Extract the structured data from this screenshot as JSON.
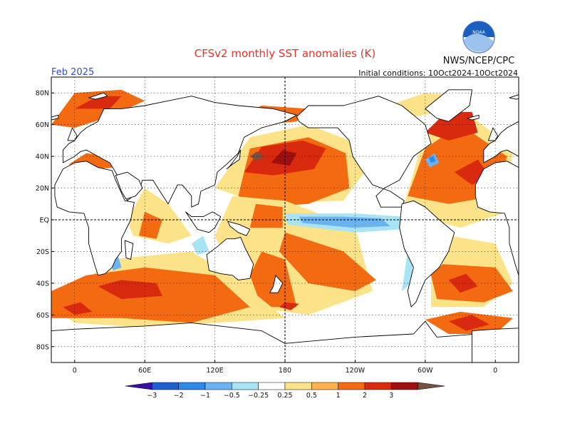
{
  "header": {
    "title": "CFSv2 monthly SST anomalies (K)",
    "valid_month": "Feb 2025",
    "initial_conditions": "Initial conditions: 10Oct2024-10Oct2024",
    "agency": "NWS/NCEP/CPC",
    "logo_text": "NOAA"
  },
  "map": {
    "projection": "equirectangular",
    "lon_range": [
      -20,
      380
    ],
    "lat_range": [
      -90,
      90
    ],
    "grid": true,
    "lat_ticks": [
      {
        "label": "80N",
        "lat": 80
      },
      {
        "label": "60N",
        "lat": 60
      },
      {
        "label": "40N",
        "lat": 40
      },
      {
        "label": "20N",
        "lat": 20
      },
      {
        "label": "EQ",
        "lat": 0
      },
      {
        "label": "20S",
        "lat": -20
      },
      {
        "label": "40S",
        "lat": -40
      },
      {
        "label": "60S",
        "lat": -60
      },
      {
        "label": "80S",
        "lat": -80
      }
    ],
    "lon_ticks": [
      {
        "label": "0",
        "lon": 0
      },
      {
        "label": "60E",
        "lon": 60
      },
      {
        "label": "120E",
        "lon": 120
      },
      {
        "label": "180",
        "lon": 180
      },
      {
        "label": "120W",
        "lon": 240
      },
      {
        "label": "60W",
        "lon": 300
      },
      {
        "label": "0",
        "lon": 360
      }
    ]
  },
  "colorbar": {
    "labels": [
      "-3",
      "-2",
      "-1",
      "-0.5",
      "-0.25",
      "0.25",
      "0.5",
      "1",
      "2",
      "3"
    ],
    "colors": [
      "#3a0fa8",
      "#1f5fd0",
      "#2f88e6",
      "#6ab3f0",
      "#a9e4f5",
      "#ffffff",
      "#fce38a",
      "#fdb24c",
      "#f46a10",
      "#d92a10",
      "#a00f0f",
      "#7a5040"
    ]
  },
  "colors": {
    "title": "#e2342b",
    "valid_month": "#2e4fd0",
    "coast": "#000000",
    "logo_blue": "#1a5fbf"
  }
}
